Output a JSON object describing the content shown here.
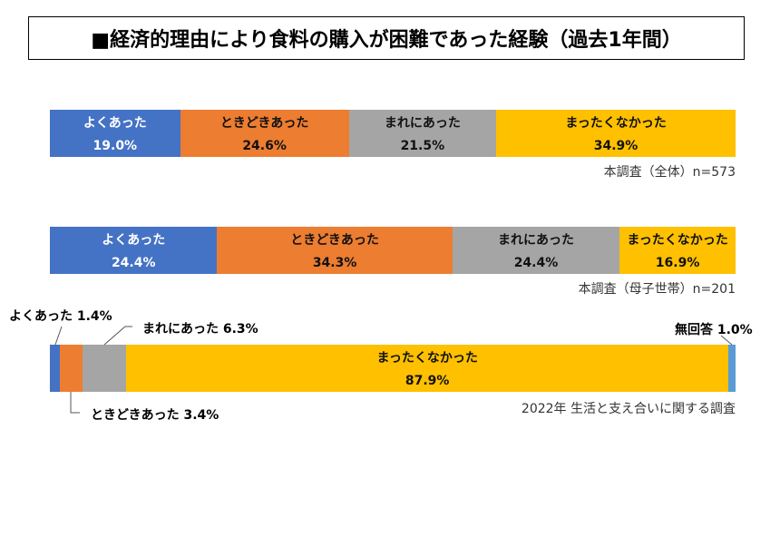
{
  "chart_data": [
    {
      "type": "bar",
      "stacked": true,
      "orientation": "horizontal",
      "title": "■経済的理由により食料の購入が困難であった経験（過去1年間）",
      "categories": [
        "よくあった",
        "ときどきあった",
        "まれにあった",
        "まったくなかった"
      ],
      "values": [
        19.0,
        24.6,
        21.5,
        34.9
      ],
      "value_labels": [
        "19.0%",
        "24.6%",
        "21.5%",
        "34.9%"
      ],
      "source": "本調査（全体）n=573"
    },
    {
      "type": "bar",
      "stacked": true,
      "orientation": "horizontal",
      "categories": [
        "よくあった",
        "ときどきあった",
        "まれにあった",
        "まったくなかった"
      ],
      "values": [
        24.4,
        34.3,
        24.4,
        16.9
      ],
      "value_labels": [
        "24.4%",
        "34.3%",
        "24.4%",
        "16.9%"
      ],
      "source": "本調査（母子世帯）n=201"
    },
    {
      "type": "bar",
      "stacked": true,
      "orientation": "horizontal",
      "categories": [
        "よくあった",
        "ときどきあった",
        "まれにあった",
        "まったくなかった",
        "無回答"
      ],
      "values": [
        1.4,
        3.4,
        6.3,
        87.9,
        1.0
      ],
      "value_labels": [
        "1.4%",
        "3.4%",
        "6.3%",
        "87.9%",
        "1.0%"
      ],
      "callouts": [
        "よくあった 1.4%",
        "ときどきあった 3.4%",
        "まれにあった 6.3%",
        "無回答 1.0%"
      ],
      "source": "2022年 生活と支え合いに関する調査"
    }
  ],
  "colors": [
    "#4472C4",
    "#ED7D31",
    "#A5A5A5",
    "#FFC000",
    "#5B9BD5"
  ],
  "label_colors": [
    "#ffffff",
    "#111111",
    "#111111",
    "#111111",
    "#111111"
  ]
}
